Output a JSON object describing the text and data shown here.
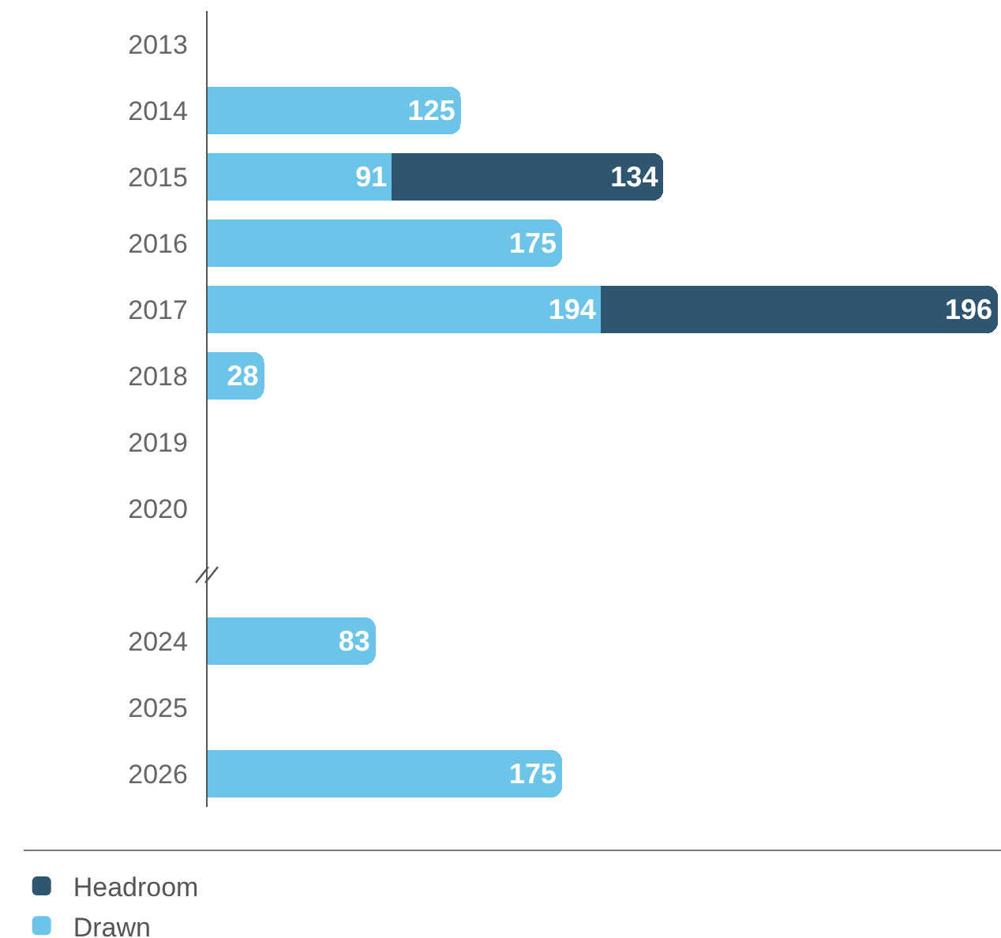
{
  "chart_data": {
    "type": "bar",
    "orientation": "horizontal",
    "stacked": true,
    "data_labels": true,
    "legend": "bottom left",
    "grid": false,
    "categories": [
      "2013",
      "2014",
      "2015",
      "2016",
      "2017",
      "2018",
      "2019",
      "2020",
      null,
      "2024",
      "2025",
      "2026"
    ],
    "series": [
      {
        "name": "Drawn",
        "color": "#6cc5e9",
        "values": [
          null,
          125,
          91,
          175,
          194,
          28,
          null,
          null,
          null,
          83,
          null,
          175
        ]
      },
      {
        "name": "Headroom",
        "color": "#2e5670",
        "values": [
          null,
          null,
          134,
          null,
          196,
          null,
          null,
          null,
          null,
          null,
          null,
          null
        ]
      }
    ]
  }
}
